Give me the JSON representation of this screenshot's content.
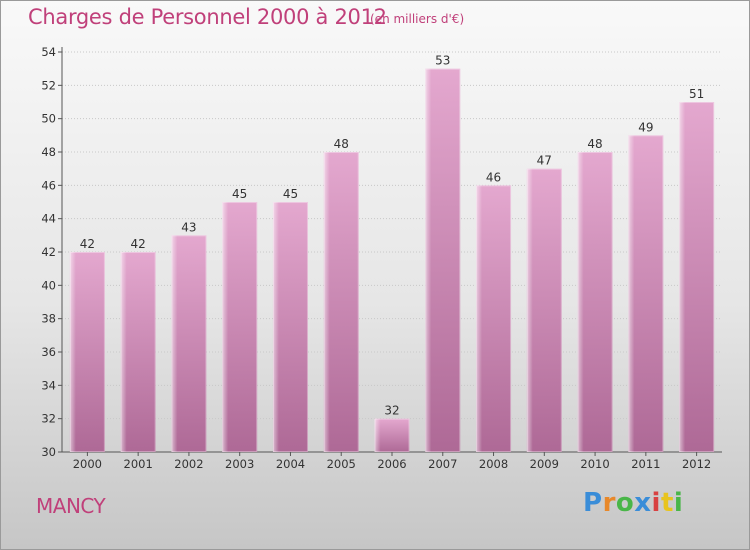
{
  "title": "Charges de Personnel 2000 à 2012",
  "subtitle": "(en milliers d'€)",
  "town": "MANCY",
  "logo": {
    "letters": [
      "P",
      "r",
      "o",
      "x",
      "i",
      "t",
      "i"
    ],
    "colors": [
      "#3a8dd8",
      "#e8882a",
      "#49b648",
      "#3a8dd8",
      "#d84141",
      "#e8c41e",
      "#49b648"
    ]
  },
  "colors": {
    "title": "#c0407a",
    "bar_top": "#e2a6cc",
    "bar_bottom": "#b06a98"
  },
  "chart_data": {
    "type": "bar",
    "title": "Charges de Personnel 2000 à 2012",
    "subtitle": "(en milliers d'€)",
    "categories": [
      "2000",
      "2001",
      "2002",
      "2003",
      "2004",
      "2005",
      "2006",
      "2007",
      "2008",
      "2009",
      "2010",
      "2011",
      "2012"
    ],
    "values": [
      42,
      42,
      43,
      45,
      45,
      48,
      32,
      53,
      46,
      47,
      48,
      49,
      51
    ],
    "xlabel": "",
    "ylabel": "",
    "ylim": [
      30,
      54
    ],
    "yticks": [
      30,
      32,
      34,
      36,
      38,
      40,
      42,
      44,
      46,
      48,
      50,
      52,
      54
    ],
    "grid": true,
    "data_labels": true
  }
}
